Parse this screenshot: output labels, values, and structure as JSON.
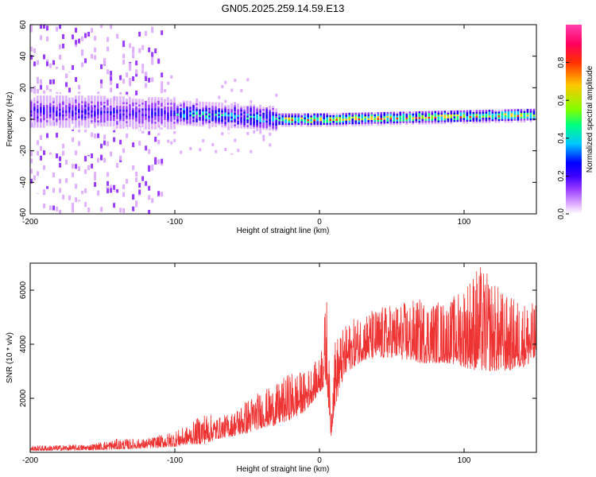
{
  "title": "GN05.2025.259.14.59.E13",
  "chart_data": [
    {
      "type": "heatmap",
      "title": "GN05.2025.259.14.59.E13",
      "xlabel": "Height of straight line (km)",
      "ylabel": "Frequency (Hz)",
      "xlim": [
        -200,
        150
      ],
      "ylim": [
        -60,
        60
      ],
      "xticks": [
        -200,
        -100,
        0,
        100
      ],
      "yticks": [
        -60,
        -40,
        -20,
        0,
        20,
        40,
        60
      ],
      "colorbar": {
        "label": "Normalized spectral amplitude",
        "range": [
          0,
          1
        ],
        "ticks": [
          "0.0",
          "0.2",
          "0.4",
          "0.6",
          "0.8"
        ],
        "tick_values": [
          0,
          0.2,
          0.4,
          0.6,
          0.8
        ],
        "colors": [
          "#ffffff",
          "#e0b0ff",
          "#9a3cff",
          "#3c00ff",
          "#0000ff",
          "#00c8ff",
          "#00ff80",
          "#80ff00",
          "#ffc800",
          "#ff3000",
          "#ff0060",
          "#ff40b0"
        ]
      },
      "ridge": {
        "description_values": "dominant energy near 0 Hz",
        "x": [
          -160,
          -120,
          -100,
          -80,
          -60,
          -40,
          -30,
          0,
          50,
          100,
          150
        ],
        "y": [
          5,
          4,
          4,
          3,
          2,
          1,
          0,
          0,
          1,
          2,
          3
        ]
      }
    },
    {
      "type": "line",
      "xlabel": "Height of straight line (km)",
      "ylabel": "SNR (10 * v/v)",
      "xlim": [
        -200,
        150
      ],
      "ylim": [
        0,
        7000
      ],
      "xticks": [
        -200,
        -100,
        0,
        100
      ],
      "yticks": [
        2000,
        4000,
        6000
      ],
      "series": [
        {
          "name": "SNR",
          "color": "#ee3333",
          "envelope_x": [
            -200,
            -160,
            -140,
            -120,
            -100,
            -90,
            -80,
            -70,
            -60,
            -50,
            -40,
            -30,
            -20,
            -10,
            0,
            5,
            8,
            10,
            15,
            20,
            30,
            50,
            70,
            90,
            110,
            130,
            150
          ],
          "envelope_low": [
            50,
            80,
            100,
            150,
            200,
            300,
            300,
            500,
            600,
            700,
            900,
            1000,
            1200,
            1500,
            2200,
            2500,
            500,
            1500,
            2500,
            3000,
            3400,
            3500,
            3300,
            3300,
            3000,
            3000,
            3300
          ],
          "envelope_high": [
            250,
            300,
            500,
            500,
            800,
            1000,
            1500,
            1300,
            1500,
            2000,
            2300,
            2500,
            3000,
            3000,
            3500,
            5800,
            1500,
            4200,
            4500,
            4800,
            5200,
            5500,
            5700,
            5600,
            7000,
            5800,
            5500
          ]
        }
      ]
    }
  ]
}
